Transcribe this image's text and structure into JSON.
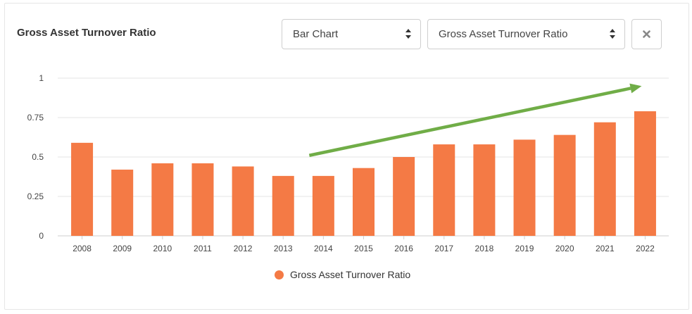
{
  "header": {
    "title": "Gross Asset Turnover Ratio",
    "chart_type_select": "Bar Chart",
    "metric_select": "Gross Asset Turnover Ratio"
  },
  "icons": {
    "select_caret": "sort-caret-icon",
    "close": "close-icon"
  },
  "colors": {
    "bar": "#f47a45",
    "trend_arrow": "#70ad47",
    "grid": "#e6e6e6"
  },
  "chart_data": {
    "type": "bar",
    "title": "",
    "xlabel": "",
    "ylabel": "",
    "categories": [
      "2008",
      "2009",
      "2010",
      "2011",
      "2012",
      "2013",
      "2014",
      "2015",
      "2016",
      "2017",
      "2018",
      "2019",
      "2020",
      "2021",
      "2022"
    ],
    "series": [
      {
        "name": "Gross Asset Turnover Ratio",
        "values": [
          0.59,
          0.42,
          0.46,
          0.46,
          0.44,
          0.38,
          0.38,
          0.43,
          0.5,
          0.58,
          0.58,
          0.61,
          0.64,
          0.72,
          0.79
        ]
      }
    ],
    "ylim": [
      0,
      1
    ],
    "yticks": [
      "0",
      "0.25",
      "0.5",
      "0.75",
      "1"
    ],
    "ytick_values": [
      0,
      0.25,
      0.5,
      0.75,
      1
    ],
    "grid": true,
    "legend_position": "bottom-center",
    "annotation": {
      "type": "upward-trend-arrow",
      "from_category": "2014",
      "to_category": "2022"
    }
  },
  "legend": {
    "label": "Gross Asset Turnover Ratio"
  }
}
